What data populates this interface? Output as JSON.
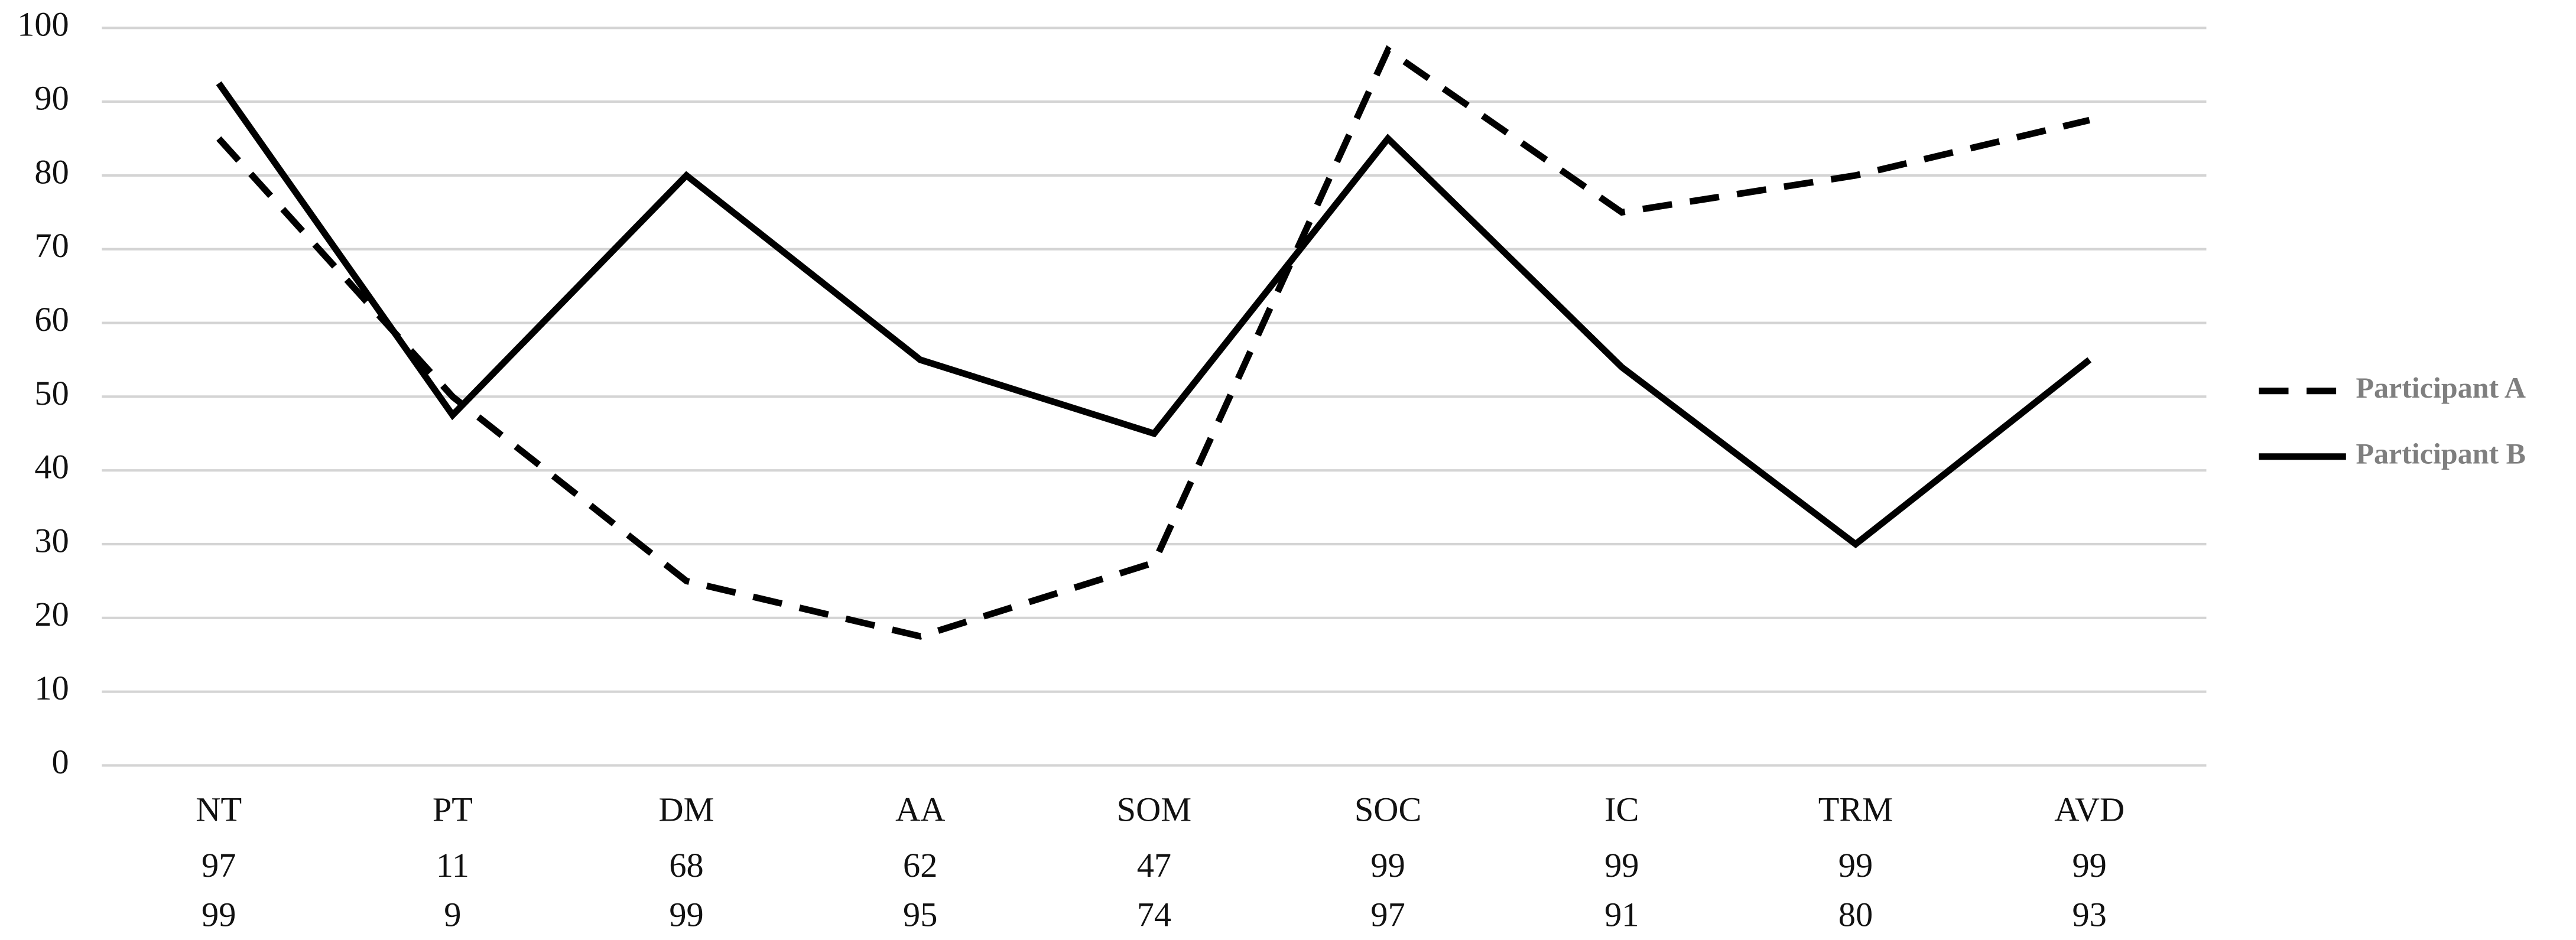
{
  "chart_data": {
    "type": "line",
    "categories": [
      "NT",
      "PT",
      "DM",
      "AA",
      "SOM",
      "SOC",
      "IC",
      "TRM",
      "AVD"
    ],
    "series": [
      {
        "name": "Participant A",
        "color": "#000000",
        "dash": true,
        "values": [
          85,
          50,
          25,
          17.5,
          27.5,
          97,
          75,
          80,
          87.5
        ]
      },
      {
        "name": "Participant B",
        "color": "#000000",
        "dash": false,
        "values": [
          92.5,
          47.5,
          80,
          55,
          45,
          85,
          54,
          30,
          55
        ]
      }
    ],
    "category_rows": [
      [
        97,
        11,
        68,
        62,
        47,
        99,
        99,
        99,
        99
      ],
      [
        99,
        9,
        99,
        95,
        74,
        97,
        91,
        80,
        93
      ]
    ],
    "ylim": [
      0,
      100
    ],
    "yticks": [
      0,
      10,
      20,
      30,
      40,
      50,
      60,
      70,
      80,
      90,
      100
    ],
    "grid": true,
    "legend": "right"
  }
}
